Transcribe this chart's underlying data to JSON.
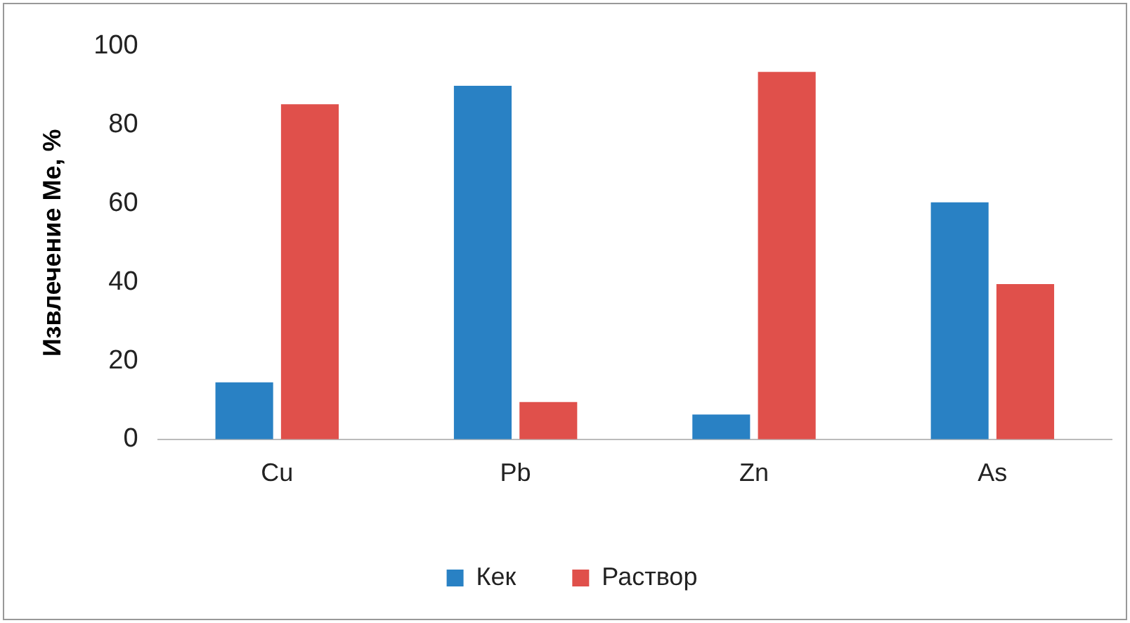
{
  "chart_data": {
    "type": "bar",
    "ylabel": "Извлечение Me, %",
    "categories": [
      "Cu",
      "Pb",
      "Zn",
      "As"
    ],
    "series": [
      {
        "name": "Кек",
        "color": "#2981c4",
        "values": [
          14.5,
          90,
          6.3,
          60.3
        ]
      },
      {
        "name": "Раствор",
        "color": "#e0504b",
        "values": [
          85.3,
          9.5,
          93.5,
          39.5
        ]
      }
    ],
    "ylim": [
      0,
      100
    ],
    "yticks": [
      0,
      20,
      40,
      60,
      80,
      100
    ],
    "grid": false,
    "legend": "bottom"
  }
}
